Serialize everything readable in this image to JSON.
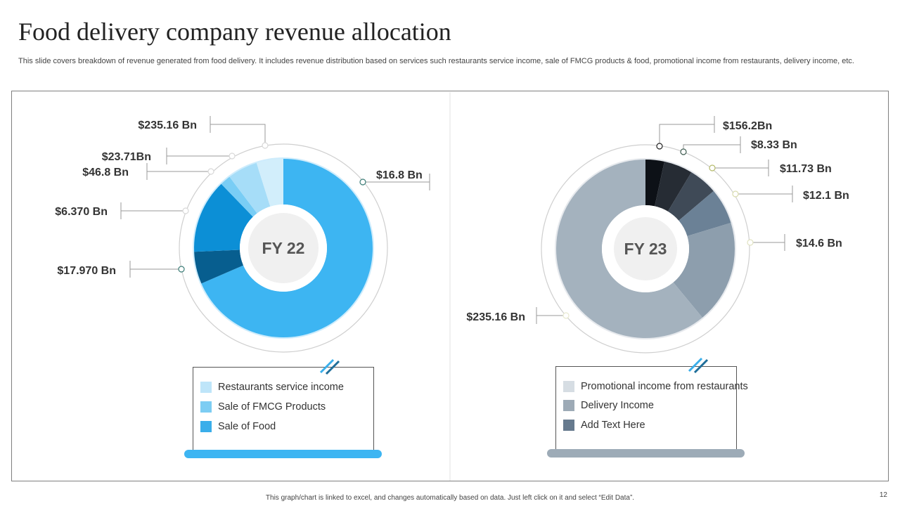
{
  "title": "Food delivery company revenue allocation",
  "subtitle": "This slide covers breakdown of revenue generated from food delivery. It includes revenue distribution based on services such restaurants service income, sale of FMCG products & food, promotional income from restaurants, delivery income, etc.",
  "footer": "This graph/chart is linked to excel, and changes automatically based on data. Just left click on it and select “Edit Data”.",
  "page_number": "12",
  "chart_data": [
    {
      "type": "pie",
      "center_label": "FY 22",
      "categories": [
        "$16.8 Bn",
        "$17.970 Bn",
        "$6.370 Bn",
        "$46.8 Bn",
        "$23.71Bn",
        "$235.16 Bn"
      ],
      "values": [
        70.5,
        6.0,
        13.8,
        2.0,
        5.6,
        5.0
      ],
      "colors": [
        "#3DB5F2",
        "#075E8F",
        "#0C8FD6",
        "#79CDF5",
        "#A6DDF8",
        "#D2EEFB"
      ],
      "legend": [
        {
          "label": "Restaurants service income",
          "color": "#BEE5F9"
        },
        {
          "label": "Sale of FMCG Products",
          "color": "#7DCDF3"
        },
        {
          "label": "Sale of Food",
          "color": "#3AAEEA"
        }
      ],
      "legend_base_color": "#3DB5F2"
    },
    {
      "type": "pie",
      "center_label": "FY 23",
      "categories": [
        "$156.2Bn",
        "$8.33 Bn",
        "$11.73 Bn",
        "$12.1 Bn",
        "$14.6 Bn",
        "$235.16 Bn"
      ],
      "values": [
        3.4,
        5.2,
        5.2,
        6.5,
        18.7,
        61.0
      ],
      "colors": [
        "#0D1117",
        "#262C34",
        "#3F4A57",
        "#6B8196",
        "#8D9EAD",
        "#A4B2BE"
      ],
      "legend": [
        {
          "label": "Promotional income from restaurants",
          "color": "#D6DDE3"
        },
        {
          "label": "Delivery Income",
          "color": "#9DAAB6"
        },
        {
          "label": "Add Text Here",
          "color": "#667A8E"
        }
      ],
      "legend_base_color": "#9DABB7"
    }
  ]
}
